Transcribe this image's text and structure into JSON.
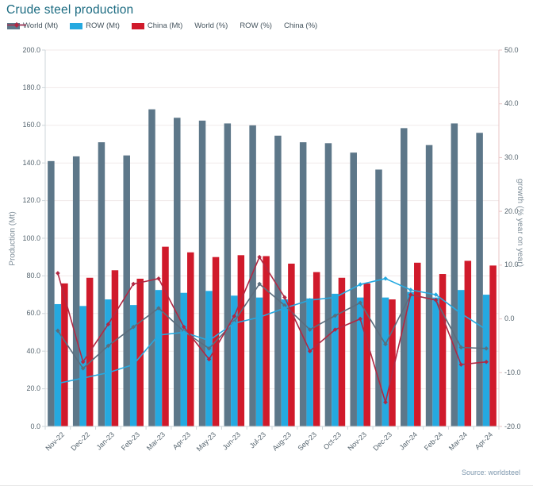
{
  "title": "Crude steel production",
  "source": "Source:  worldsteel",
  "chart_data": {
    "type": "combo-bar-line",
    "title": "Crude steel production",
    "grid": "horizontal",
    "legend_position": "top-left",
    "categories": [
      "Nov-22",
      "Dec-22",
      "Jan-23",
      "Feb-23",
      "Mar-23",
      "Apr-23",
      "May-23",
      "Jun-23",
      "Jul-23",
      "Aug-23",
      "Sep-23",
      "Oct-23",
      "Nov-23",
      "Dec-23",
      "Jan-24",
      "Feb-24",
      "Mar-24",
      "Apr-24"
    ],
    "bar_series": [
      {
        "name": "World (Mt)",
        "slug": "world-mt",
        "color": "#5d7789",
        "axis": "left",
        "values": [
          141,
          143.5,
          151,
          144,
          168.5,
          164,
          162.5,
          161,
          160,
          154.5,
          151,
          150.5,
          145.5,
          136.5,
          158.5,
          149.5,
          161,
          156
        ]
      },
      {
        "name": "ROW (Mt)",
        "slug": "row-mt",
        "color": "#25a9e0",
        "axis": "left",
        "values": [
          65,
          64,
          67.5,
          64.5,
          72.5,
          71,
          72,
          69.5,
          68.5,
          67.5,
          68,
          70.5,
          68.5,
          68.5,
          71.5,
          68.5,
          72.5,
          70
        ]
      },
      {
        "name": "China (Mt)",
        "slug": "china-mt",
        "color": "#d01a2b",
        "axis": "left",
        "values": [
          76,
          79,
          83,
          78.5,
          95.5,
          92.5,
          90,
          91,
          90.5,
          86.5,
          82,
          79,
          76,
          67.5,
          87,
          81,
          88,
          85.5
        ]
      }
    ],
    "line_series": [
      {
        "name": "World (%)",
        "slug": "world-pct",
        "color": "#5b6d7d",
        "axis": "right",
        "values": [
          -2.2,
          -9.2,
          -5,
          -1.5,
          2,
          -2.3,
          -5.5,
          -0.5,
          6.5,
          2.5,
          -2,
          0.6,
          3,
          -4.7,
          4.5,
          3.5,
          -5.3,
          -5.5
        ]
      },
      {
        "name": "ROW (%)",
        "slug": "row-pct",
        "color": "#25a9e0",
        "axis": "right",
        "values": [
          -12,
          -11,
          -10,
          -8.5,
          -3,
          -2.5,
          -4,
          -0.8,
          0.3,
          2,
          3.5,
          4,
          6.4,
          7.5,
          5.4,
          4.5,
          1,
          -2
        ]
      },
      {
        "name": "China (%)",
        "slug": "china-pct",
        "color": "#b12843",
        "axis": "right",
        "values": [
          8.5,
          -8,
          -1,
          6.5,
          7.5,
          -1.5,
          -7.5,
          0.5,
          11.5,
          4,
          -6,
          -2,
          0,
          -15.5,
          4.5,
          3.5,
          -8.5,
          -8
        ]
      }
    ],
    "left_axis": {
      "label": "Production (Mt)",
      "min": 0,
      "max": 200,
      "step": 20,
      "tick_labels": [
        "0.0",
        "20.0",
        "40.0",
        "60.0",
        "80.0",
        "100.0",
        "120.0",
        "140.0",
        "160.0",
        "180.0",
        "200.0"
      ]
    },
    "right_axis": {
      "label": "growth (% year on year)",
      "min": -20,
      "max": 50,
      "step": 10,
      "tick_labels": [
        "-20.0",
        "-10.0",
        "0.0",
        "10.0",
        "20.0",
        "30.0",
        "40.0",
        "50.0"
      ]
    }
  },
  "colors": {
    "title": "#1a6a80",
    "gridline": "#f1eaea",
    "axis_line": "#cdd6da",
    "right_axis_line": "#e9c6c6",
    "tick_text": "#55646e",
    "axis_title_text": "#7e8d98",
    "source_text": "#7d97ad"
  }
}
